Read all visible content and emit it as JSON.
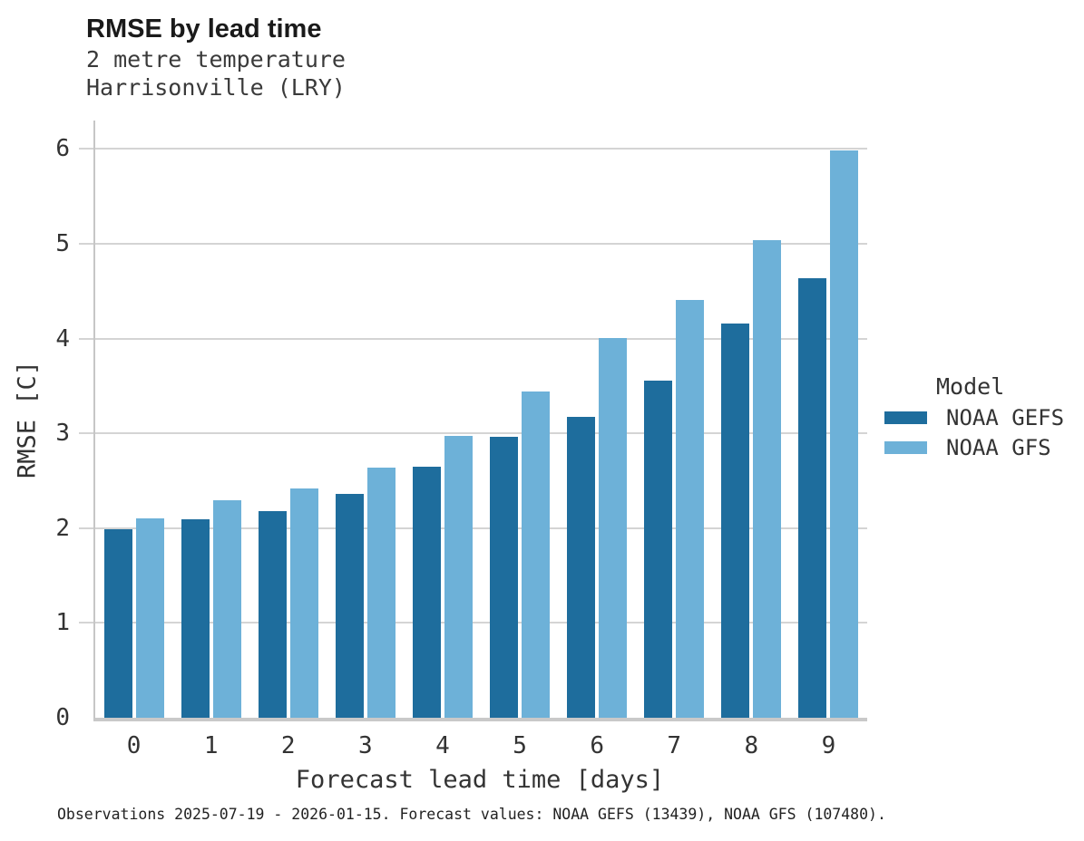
{
  "footer": "Observations 2025-07-19 - 2026-01-15. Forecast values: NOAA GEFS (13439), NOAA GFS (107480).",
  "colors": {
    "gefs_dark_blue": "#1e6d9d",
    "gfs_light_blue": "#6db1d8",
    "gridline_gray": "#d4d4d4",
    "spine_gray": "#c6c6c6",
    "text_dark": "#1a1a1a",
    "text_gray": "#333333"
  },
  "chart_data": {
    "type": "bar",
    "title": "RMSE by lead time",
    "subtitle": [
      "2 metre temperature",
      "Harrisonville (LRY)"
    ],
    "xlabel": "Forecast lead time [days]",
    "ylabel": "RMSE [C]",
    "categories": [
      "0",
      "1",
      "2",
      "3",
      "4",
      "5",
      "6",
      "7",
      "8",
      "9"
    ],
    "series": [
      {
        "name": "NOAA GEFS",
        "color": "#1e6d9d",
        "values": [
          1.99,
          2.09,
          2.18,
          2.36,
          2.65,
          2.96,
          3.17,
          3.56,
          4.16,
          4.64
        ]
      },
      {
        "name": "NOAA GFS",
        "color": "#6db1d8",
        "values": [
          2.1,
          2.29,
          2.42,
          2.64,
          2.97,
          3.44,
          4.01,
          4.41,
          5.04,
          5.98
        ]
      }
    ],
    "yticks": [
      0,
      1,
      2,
      3,
      4,
      5,
      6
    ],
    "ylim": [
      0,
      6.3
    ],
    "grid": true,
    "legend_title": "Model",
    "legend_position": "right"
  }
}
